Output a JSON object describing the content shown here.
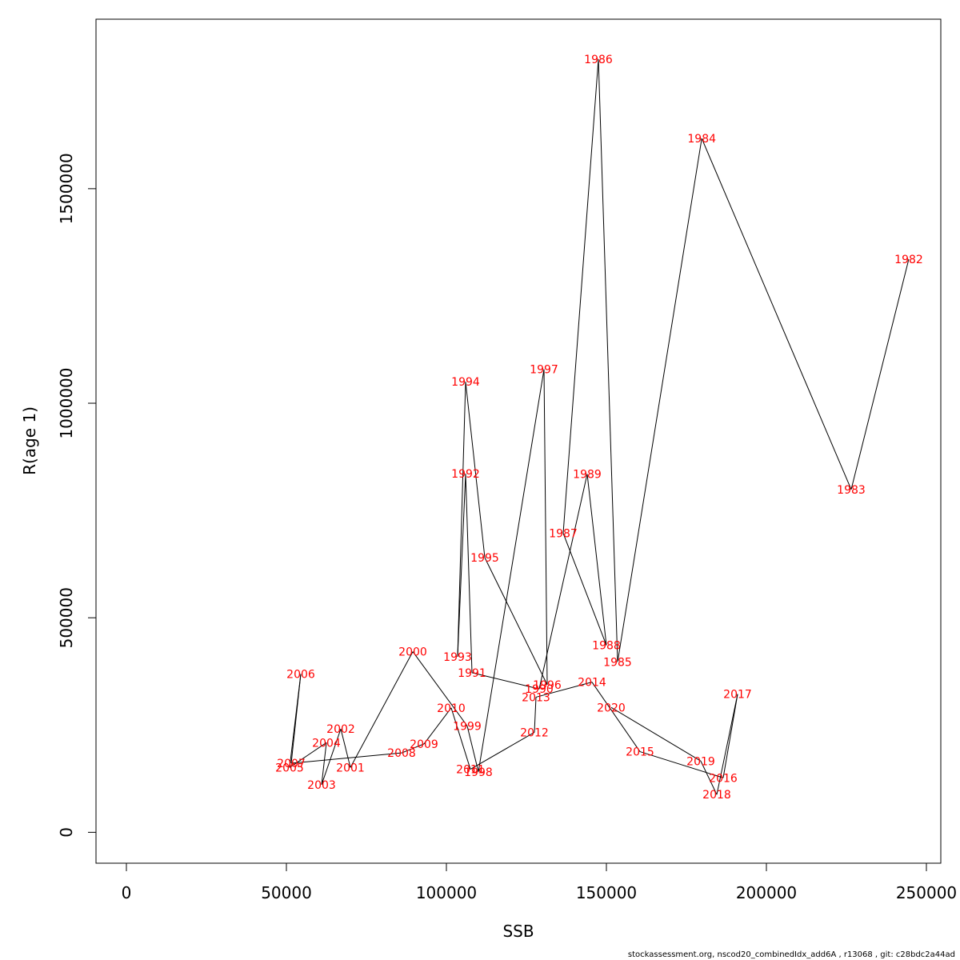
{
  "chart_data": {
    "type": "line",
    "xlabel": "SSB",
    "ylabel": "R(age 1)",
    "xlim": [
      -9500,
      254500
    ],
    "ylim": [
      -72000,
      1895000
    ],
    "x_ticks": [
      0,
      50000,
      100000,
      150000,
      200000,
      250000
    ],
    "x_tick_labels": [
      "0",
      "50000",
      "100000",
      "150000",
      "200000",
      "250000"
    ],
    "y_ticks": [
      0,
      500000,
      1000000,
      1500000
    ],
    "y_tick_labels": [
      "0",
      "500000",
      "1000000",
      "1500000"
    ],
    "grid": false,
    "line_color": "#000000",
    "label_color": "#ff0000",
    "points": [
      {
        "year": "1982",
        "x": 244500,
        "y": 1336000
      },
      {
        "year": "1983",
        "x": 226500,
        "y": 799000
      },
      {
        "year": "1984",
        "x": 179800,
        "y": 1617000
      },
      {
        "year": "1985",
        "x": 153500,
        "y": 397000
      },
      {
        "year": "1986",
        "x": 147500,
        "y": 1802000
      },
      {
        "year": "1987",
        "x": 136500,
        "y": 697000
      },
      {
        "year": "1988",
        "x": 150000,
        "y": 436000
      },
      {
        "year": "1989",
        "x": 144000,
        "y": 835000
      },
      {
        "year": "1990",
        "x": 129000,
        "y": 334000
      },
      {
        "year": "1991",
        "x": 108000,
        "y": 372000
      },
      {
        "year": "1992",
        "x": 106000,
        "y": 836000
      },
      {
        "year": "1993",
        "x": 103500,
        "y": 409000
      },
      {
        "year": "1994",
        "x": 106000,
        "y": 1050000
      },
      {
        "year": "1995",
        "x": 112000,
        "y": 640000
      },
      {
        "year": "1996",
        "x": 131500,
        "y": 344000
      },
      {
        "year": "1997",
        "x": 130500,
        "y": 1079000
      },
      {
        "year": "1998",
        "x": 110000,
        "y": 141000
      },
      {
        "year": "1999",
        "x": 106500,
        "y": 248000
      },
      {
        "year": "2000",
        "x": 89500,
        "y": 421000
      },
      {
        "year": "2001",
        "x": 70000,
        "y": 151000
      },
      {
        "year": "2002",
        "x": 67000,
        "y": 241000
      },
      {
        "year": "2003",
        "x": 61000,
        "y": 111000
      },
      {
        "year": "2004",
        "x": 62500,
        "y": 209000
      },
      {
        "year": "2005",
        "x": 51000,
        "y": 151000
      },
      {
        "year": "2006",
        "x": 54500,
        "y": 369000
      },
      {
        "year": "2007",
        "x": 51500,
        "y": 161000
      },
      {
        "year": "2008",
        "x": 86000,
        "y": 185000
      },
      {
        "year": "2009",
        "x": 93000,
        "y": 206000
      },
      {
        "year": "2010",
        "x": 101500,
        "y": 290000
      },
      {
        "year": "2011",
        "x": 107500,
        "y": 147000
      },
      {
        "year": "2012",
        "x": 127500,
        "y": 233000
      },
      {
        "year": "2013",
        "x": 128000,
        "y": 315000
      },
      {
        "year": "2014",
        "x": 145500,
        "y": 350000
      },
      {
        "year": "2015",
        "x": 160500,
        "y": 188000
      },
      {
        "year": "2016",
        "x": 186500,
        "y": 127000
      },
      {
        "year": "2017",
        "x": 191000,
        "y": 322000
      },
      {
        "year": "2018",
        "x": 184500,
        "y": 88000
      },
      {
        "year": "2019",
        "x": 179500,
        "y": 166000
      },
      {
        "year": "2020",
        "x": 151500,
        "y": 291000
      }
    ]
  },
  "footer": "stockassessment.org, nscod20_combinedIdx_add6A  , r13068 , git: c28bdc2a44ad"
}
